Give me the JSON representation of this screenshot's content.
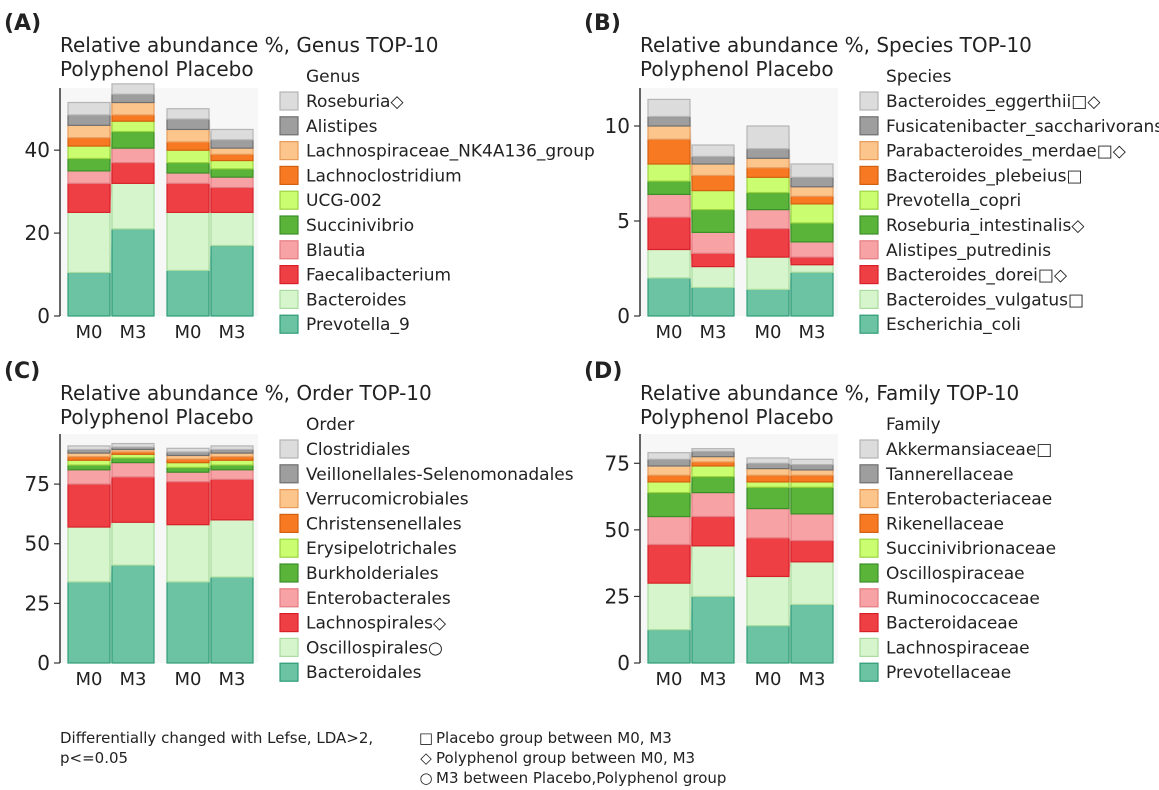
{
  "colors": [
    "#6cc3a4",
    "#d6f5cc",
    "#ee3f45",
    "#f7a2a5",
    "#5ab43a",
    "#cbfd71",
    "#f77a23",
    "#fcc58c",
    "#9e9e9e",
    "#dcdcdc"
  ],
  "edge_colors": [
    "#2e9b76",
    "#a9dc9e",
    "#d81f28",
    "#e47d82",
    "#3b8f28",
    "#9bd440",
    "#d35f10",
    "#e79c5c",
    "#6f6f6f",
    "#b5b5b5"
  ],
  "chart_data": [
    {
      "type": "bar",
      "stacked": true,
      "panel_label": "(A)",
      "title": "Relative abundance %, Genus TOP-10",
      "subtitle": "Polyphenol Placebo",
      "legend_title": "Genus",
      "categories": [
        "M0",
        "M3",
        "M0",
        "M3"
      ],
      "ylim": [
        0,
        55
      ],
      "yticks": [
        "0",
        "20",
        "40"
      ],
      "ytick_values": [
        0,
        20,
        40
      ],
      "series": [
        {
          "name": "Prevotella_9",
          "values": [
            10.5,
            21,
            11,
            17
          ]
        },
        {
          "name": "Bacteroides",
          "values": [
            14.5,
            11,
            14,
            8
          ]
        },
        {
          "name": "Faecalibacterium",
          "values": [
            7,
            5,
            7,
            6
          ]
        },
        {
          "name": "Blautia",
          "values": [
            3,
            3.5,
            2.5,
            2.5
          ]
        },
        {
          "name": "Succinivibrio",
          "values": [
            3,
            4,
            2.5,
            2
          ]
        },
        {
          "name": "UCG-002",
          "values": [
            3,
            2.5,
            3,
            2
          ]
        },
        {
          "name": "Lachnoclostridium",
          "values": [
            2,
            1.5,
            2,
            1.5
          ]
        },
        {
          "name": "Lachnospiraceae_NK4A136_group",
          "values": [
            3,
            3,
            3,
            1.5
          ]
        },
        {
          "name": "Alistipes",
          "values": [
            2.5,
            2,
            2.5,
            2
          ]
        },
        {
          "name": "Roseburia◇",
          "values": [
            3,
            2.5,
            2.5,
            2.5
          ]
        }
      ]
    },
    {
      "type": "bar",
      "stacked": true,
      "panel_label": "(B)",
      "title": "Relative abundance %, Species TOP-10",
      "subtitle": "Polyphenol Placebo",
      "legend_title": "Species",
      "categories": [
        "M0",
        "M3",
        "M0",
        "M3"
      ],
      "ylim": [
        0,
        12
      ],
      "yticks": [
        "0",
        "5",
        "10"
      ],
      "ytick_values": [
        0,
        5,
        10
      ],
      "series": [
        {
          "name": "Escherichia_coli",
          "values": [
            2,
            1.5,
            1.4,
            2.3
          ]
        },
        {
          "name": "Bacteroides_vulgatus□",
          "values": [
            1.5,
            1.1,
            1.7,
            0.4
          ]
        },
        {
          "name": "Bacteroides_dorei□◇",
          "values": [
            1.7,
            0.7,
            1.5,
            0.4
          ]
        },
        {
          "name": "Alistipes_putredinis",
          "values": [
            1.2,
            1.1,
            1.0,
            0.8
          ]
        },
        {
          "name": "Roseburia_intestinalis◇",
          "values": [
            0.7,
            1.2,
            0.9,
            1.0
          ]
        },
        {
          "name": "Prevotella_copri",
          "values": [
            0.9,
            1.0,
            0.8,
            1.0
          ]
        },
        {
          "name": "Bacteroides_plebeius□",
          "values": [
            1.3,
            0.8,
            0.5,
            0.4
          ]
        },
        {
          "name": "Parabacteroides_merdae□◇",
          "values": [
            0.7,
            0.6,
            0.5,
            0.5
          ]
        },
        {
          "name": "Fusicatenibacter_saccharivorans",
          "values": [
            0.5,
            0.4,
            0.5,
            0.5
          ]
        },
        {
          "name": "Bacteroides_eggerthii□◇",
          "values": [
            0.9,
            0.6,
            1.2,
            0.7
          ]
        }
      ]
    },
    {
      "type": "bar",
      "stacked": true,
      "panel_label": "(C)",
      "title": "Relative abundance %, Order TOP-10",
      "subtitle": "Polyphenol Placebo",
      "legend_title": "Order",
      "categories": [
        "M0",
        "M3",
        "M0",
        "M3"
      ],
      "ylim": [
        0,
        96
      ],
      "yticks": [
        "0",
        "25",
        "50",
        "75"
      ],
      "ytick_values": [
        0,
        25,
        50,
        75
      ],
      "series": [
        {
          "name": "Bacteroidales",
          "values": [
            34,
            41,
            34,
            36
          ]
        },
        {
          "name": "Oscillospirales○",
          "values": [
            23,
            18,
            24,
            24
          ]
        },
        {
          "name": "Lachnospirales◇",
          "values": [
            18,
            19,
            18,
            17
          ]
        },
        {
          "name": "Enterobacterales",
          "values": [
            6,
            6,
            4,
            4
          ]
        },
        {
          "name": "Burkholderiales",
          "values": [
            2,
            2,
            2,
            2
          ]
        },
        {
          "name": "Erysipelotrichales",
          "values": [
            2,
            1.5,
            2,
            2
          ]
        },
        {
          "name": "Christensenellales",
          "values": [
            1.5,
            1,
            1.5,
            1.5
          ]
        },
        {
          "name": "Verrucomicrobiales",
          "values": [
            1.5,
            1,
            1.5,
            1.5
          ]
        },
        {
          "name": "Veillonellales-Selenomonadales",
          "values": [
            1.5,
            1,
            1.5,
            1.5
          ]
        },
        {
          "name": "Clostridiales",
          "values": [
            1.5,
            1.5,
            1.5,
            1.5
          ]
        }
      ]
    },
    {
      "type": "bar",
      "stacked": true,
      "panel_label": "(D)",
      "title": "Relative abundance %, Family TOP-10",
      "subtitle": "Polyphenol Placebo",
      "legend_title": "Family",
      "categories": [
        "M0",
        "M3",
        "M0",
        "M3"
      ],
      "ylim": [
        0,
        86
      ],
      "yticks": [
        "0",
        "25",
        "50",
        "75"
      ],
      "ytick_values": [
        0,
        25,
        50,
        75
      ],
      "series": [
        {
          "name": "Prevotellaceae",
          "values": [
            12.5,
            25,
            14,
            22
          ]
        },
        {
          "name": "Lachnospiraceae",
          "values": [
            17.5,
            19,
            18.5,
            16
          ]
        },
        {
          "name": "Bacteroidaceae",
          "values": [
            14.5,
            11,
            14.5,
            8
          ]
        },
        {
          "name": "Ruminococcaceae",
          "values": [
            10.5,
            9,
            11,
            10
          ]
        },
        {
          "name": "Oscillospiraceae",
          "values": [
            9,
            6,
            8,
            10
          ]
        },
        {
          "name": "Succinivibrionaceae",
          "values": [
            4,
            4,
            2,
            2
          ]
        },
        {
          "name": "Rikenellaceae",
          "values": [
            2.5,
            1.5,
            2.5,
            2.5
          ]
        },
        {
          "name": "Enterobacteriaceae",
          "values": [
            3.5,
            2,
            2.5,
            2
          ]
        },
        {
          "name": "Tannerellaceae",
          "values": [
            2.5,
            2,
            2,
            2
          ]
        },
        {
          "name": "Akkermansiaceae□",
          "values": [
            2.5,
            1,
            2,
            2
          ]
        }
      ]
    }
  ],
  "footnote": {
    "line1": "Differentially changed with Lefse, LDA>2,",
    "line2": "p<=0.05"
  },
  "symbol_key": [
    {
      "symbol": "□",
      "text": "Placebo group between M0, M3"
    },
    {
      "symbol": "◇",
      "text": "Polyphenol group between M0, M3"
    },
    {
      "symbol": "○",
      "text": "M3 between Placebo,Polyphenol group"
    }
  ]
}
